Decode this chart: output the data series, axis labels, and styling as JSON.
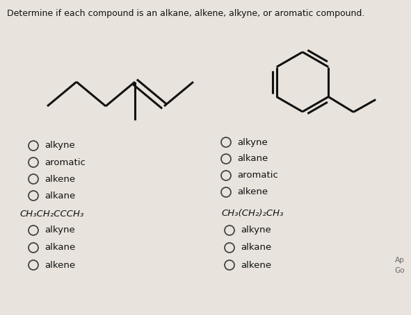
{
  "title": "Determine if each compound is an alkane, alkene, alkyne, or aromatic compound.",
  "bg_color": "#e8e4dd",
  "text_color": "#111111",
  "title_fontsize": 9.0,
  "label_fontsize": 9.5,
  "formula_fontsize": 9.5,
  "left_options_1": [
    "alkyne",
    "aromatic",
    "alkene",
    "alkane"
  ],
  "right_options_1": [
    "alkyne",
    "alkane",
    "aromatic",
    "alkene"
  ],
  "left_formula": "CH₃CH₂CCCH₃",
  "right_formula": "CH₃(CH₂)₂CH₃",
  "left_options_2": [
    "alkyne",
    "alkane",
    "alkene"
  ],
  "right_options_2": [
    "alkyne",
    "alkane",
    "alkene"
  ],
  "mol_lw": 2.2,
  "circle_r": 7,
  "circle_lw": 1.3
}
